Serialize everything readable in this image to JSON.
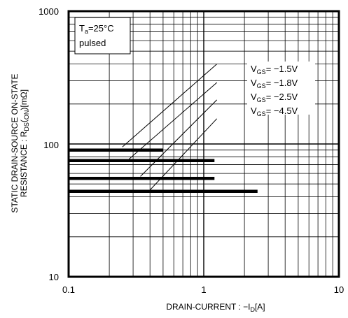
{
  "chart_data": {
    "type": "line",
    "x_scale": "log",
    "y_scale": "log",
    "xlim": [
      0.1,
      10
    ],
    "ylim": [
      10,
      1000
    ],
    "x_ticks": [
      "0.1",
      "1",
      "10"
    ],
    "y_ticks": [
      "10",
      "100",
      "1000"
    ],
    "grid": true,
    "xlabel": {
      "prefix": "DRAIN-CURRENT : −I",
      "sub": "D",
      "suffix": "[A]"
    },
    "ylabel": {
      "line1": "STATIC DRAIN-SOURCE ON-STATE",
      "line2_prefix": "RESISTANCE : R",
      "line2_sub": "DS",
      "line2_mid": "(",
      "line2_sub2": "ON",
      "line2_suffix": ")[mΩ]"
    },
    "condition": {
      "t_prefix": "T",
      "t_sub": "a",
      "t_suffix": "=25°C",
      "mode": "pulsed"
    },
    "series": [
      {
        "label_prefix": "V",
        "label_sub": "GS",
        "label_suffix": "= −1.5V",
        "x": [
          0.1,
          0.5
        ],
        "y": [
          90,
          90
        ]
      },
      {
        "label_prefix": "V",
        "label_sub": "GS",
        "label_suffix": "= −1.8V",
        "x": [
          0.1,
          1.2
        ],
        "y": [
          75,
          75
        ]
      },
      {
        "label_prefix": "V",
        "label_sub": "GS",
        "label_suffix": "= −2.5V",
        "x": [
          0.1,
          1.2
        ],
        "y": [
          55,
          55
        ]
      },
      {
        "label_prefix": "V",
        "label_sub": "GS",
        "label_suffix": "= −4.5V",
        "x": [
          0.1,
          2.5
        ],
        "y": [
          44,
          44
        ]
      }
    ],
    "leaders": [
      {
        "x": [
          0.25,
          1.25
        ],
        "y": [
          95,
          400
        ]
      },
      {
        "x": [
          0.28,
          1.25
        ],
        "y": [
          77,
          290
        ]
      },
      {
        "x": [
          0.34,
          1.25
        ],
        "y": [
          57,
          215
        ]
      },
      {
        "x": [
          0.4,
          1.25
        ],
        "y": [
          45,
          155
        ]
      }
    ]
  }
}
